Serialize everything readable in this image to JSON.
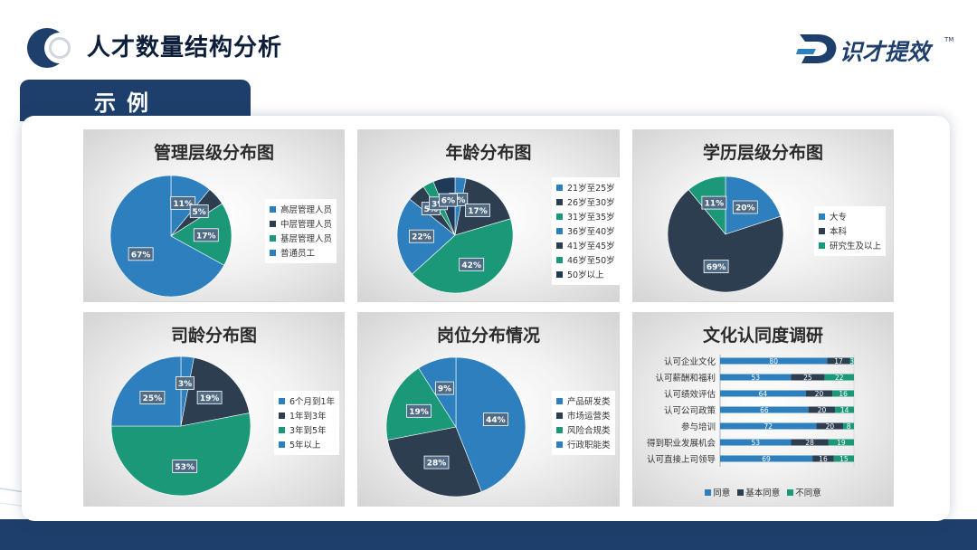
{
  "header": {
    "title": "人才数量结构分析",
    "brand_name": "识才提效",
    "brand_tm": "TM"
  },
  "example_tab": {
    "label": "示例"
  },
  "colors": {
    "blue": "#2e7fbd",
    "navy": "#2c3e50",
    "green": "#1a9878",
    "steel": "#3d8fc4",
    "dark": "#1f3a57",
    "brand": "#1e3f6b"
  },
  "chart_data": [
    {
      "type": "pie",
      "title": "管理层级分布图",
      "categories": [
        "高层管理人员",
        "中层管理人员",
        "基层管理人员",
        "普通员工"
      ],
      "values": [
        11,
        5,
        17,
        67
      ],
      "labels": [
        "11%",
        "5%",
        "17%",
        "67%"
      ],
      "colors": [
        "#2e7fbd",
        "#2c3e50",
        "#1a9878",
        "#2e7fbd"
      ],
      "legend": "right"
    },
    {
      "type": "pie",
      "title": "年龄分布图",
      "categories": [
        "21岁至25岁",
        "26岁至30岁",
        "31岁至35岁",
        "36岁至40岁",
        "41岁至45岁",
        "46岁至50岁",
        "50岁以上"
      ],
      "values": [
        3,
        17,
        42,
        22,
        5,
        3,
        6
      ],
      "labels": [
        "3%",
        "17%",
        "42%",
        "22%",
        "5%",
        "3%",
        "6%"
      ],
      "colors": [
        "#2e7fbd",
        "#2c3e50",
        "#1a9878",
        "#2e7fbd",
        "#2c3e50",
        "#1a9878",
        "#1f3a57"
      ],
      "legend": "right"
    },
    {
      "type": "pie",
      "title": "学历层级分布图",
      "categories": [
        "大专",
        "本科",
        "研究生及以上"
      ],
      "values": [
        20,
        69,
        11
      ],
      "labels": [
        "20%",
        "69%",
        "11%"
      ],
      "colors": [
        "#2e7fbd",
        "#2c3e50",
        "#1a9878"
      ],
      "legend": "right"
    },
    {
      "type": "pie",
      "title": "司龄分布图",
      "categories": [
        "6个月到1年",
        "1年到3年",
        "3年到5年",
        "5年以上"
      ],
      "values": [
        3,
        19,
        53,
        25
      ],
      "labels": [
        "3%",
        "19%",
        "53%",
        "25%"
      ],
      "colors": [
        "#2e7fbd",
        "#2c3e50",
        "#1a9878",
        "#2e7fbd"
      ],
      "legend": "right"
    },
    {
      "type": "pie",
      "title": "岗位分布情况",
      "categories": [
        "产品研发类",
        "市场运营类",
        "风险合规类",
        "行政职能类"
      ],
      "values": [
        44,
        28,
        19,
        9
      ],
      "labels": [
        "44%",
        "28%",
        "19%",
        "9%"
      ],
      "colors": [
        "#2e7fbd",
        "#2c3e50",
        "#1a9878",
        "#2e7fbd"
      ],
      "legend": "right"
    },
    {
      "type": "bar",
      "orientation": "horizontal",
      "stacked": true,
      "title": "文化认同度调研",
      "categories": [
        "认可企业文化",
        "认可薪酬和福利",
        "认可绩效评估",
        "认可公司政策",
        "参与培训",
        "得到职业发展机会",
        "认可直接上司领导"
      ],
      "series": [
        {
          "name": "同意",
          "color": "#2e7fbd",
          "values": [
            80,
            53,
            64,
            66,
            72,
            53,
            69
          ]
        },
        {
          "name": "基本同意",
          "color": "#2c3e50",
          "values": [
            17,
            25,
            20,
            20,
            20,
            28,
            16
          ]
        },
        {
          "name": "不同意",
          "color": "#1a9878",
          "values": [
            3,
            22,
            16,
            14,
            8,
            19,
            15
          ]
        }
      ],
      "legend": "bottom"
    }
  ]
}
